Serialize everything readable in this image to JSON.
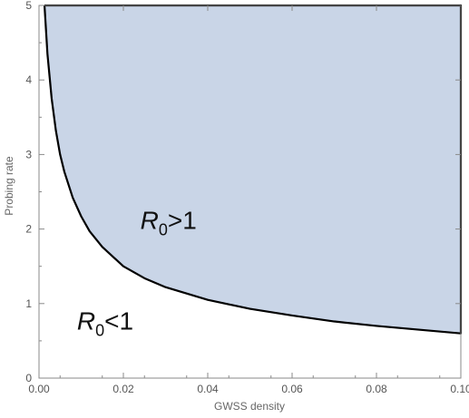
{
  "chart_data": {
    "type": "area",
    "title": "",
    "xlabel": "GWSS density",
    "ylabel": "Probing rate",
    "xlim": [
      0,
      0.1
    ],
    "ylim": [
      0,
      5
    ],
    "xticks": [
      0.0,
      0.02,
      0.04,
      0.06,
      0.08,
      0.1
    ],
    "xtick_labels": [
      "0.00",
      "0.02",
      "0.04",
      "0.06",
      "0.08",
      "0.10"
    ],
    "yticks": [
      0,
      1,
      2,
      3,
      4,
      5
    ],
    "ytick_labels": [
      "0",
      "1",
      "2",
      "3",
      "4",
      "5"
    ],
    "grid": false,
    "boundary": {
      "x": [
        0.0013,
        0.002,
        0.003,
        0.004,
        0.005,
        0.006,
        0.008,
        0.01,
        0.012,
        0.015,
        0.02,
        0.025,
        0.03,
        0.04,
        0.05,
        0.06,
        0.07,
        0.08,
        0.09,
        0.1
      ],
      "y": [
        5.0,
        4.35,
        3.75,
        3.32,
        3.0,
        2.77,
        2.42,
        2.17,
        1.97,
        1.76,
        1.5,
        1.34,
        1.22,
        1.05,
        0.93,
        0.84,
        0.76,
        0.7,
        0.65,
        0.6
      ]
    },
    "fill_color": "#c9d5e7",
    "line_color": "#000000",
    "annotations": [
      {
        "base": "R",
        "sub": "0",
        "rest": ">1",
        "x": 0.024,
        "y": 2.0
      },
      {
        "base": "R",
        "sub": "0",
        "rest": "<1",
        "x": 0.009,
        "y": 0.65
      }
    ]
  }
}
